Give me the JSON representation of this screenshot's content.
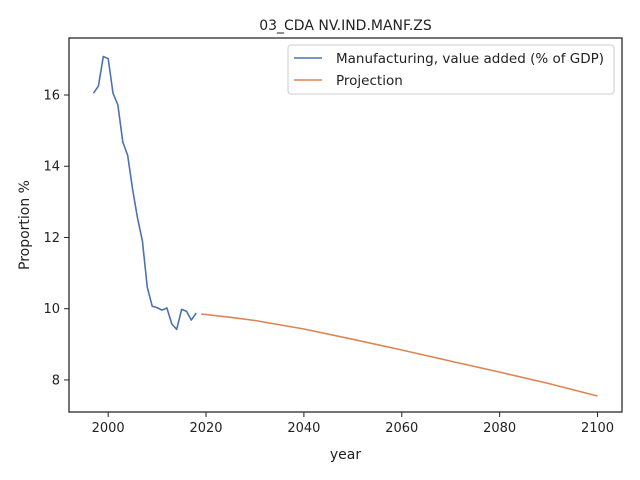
{
  "chart_data": {
    "type": "line",
    "title": "03_CDA NV.IND.MANF.ZS",
    "xlabel": "year",
    "ylabel": "Proportion %",
    "xlim": [
      1992,
      2105
    ],
    "ylim": [
      7.1,
      17.6
    ],
    "xticks": [
      2000,
      2020,
      2040,
      2060,
      2080,
      2100
    ],
    "yticks": [
      8,
      10,
      12,
      14,
      16
    ],
    "grid": false,
    "legend": "top-right",
    "colors": {
      "Manufacturing, value added (% of GDP)": "#4c72b0",
      "Projection": "#dd8452"
    },
    "series": [
      {
        "name": "Manufacturing, value added (% of GDP)",
        "color": "#4c72b0",
        "x": [
          1997,
          1998,
          1999,
          2000,
          2001,
          2002,
          2003,
          2004,
          2005,
          2006,
          2007,
          2008,
          2009,
          2010,
          2011,
          2012,
          2013,
          2014,
          2015,
          2016,
          2017,
          2018
        ],
        "y": [
          16.05,
          16.25,
          17.08,
          17.02,
          16.05,
          15.72,
          14.68,
          14.3,
          13.35,
          12.55,
          11.9,
          10.6,
          10.07,
          10.03,
          9.96,
          10.02,
          9.57,
          9.42,
          9.98,
          9.93,
          9.68,
          9.88
        ]
      },
      {
        "name": "Projection",
        "color": "#dd8452",
        "x": [
          2019,
          2025,
          2030,
          2040,
          2050,
          2060,
          2070,
          2080,
          2090,
          2100
        ],
        "y": [
          9.85,
          9.76,
          9.67,
          9.43,
          9.14,
          8.84,
          8.53,
          8.22,
          7.9,
          7.55
        ]
      }
    ]
  }
}
